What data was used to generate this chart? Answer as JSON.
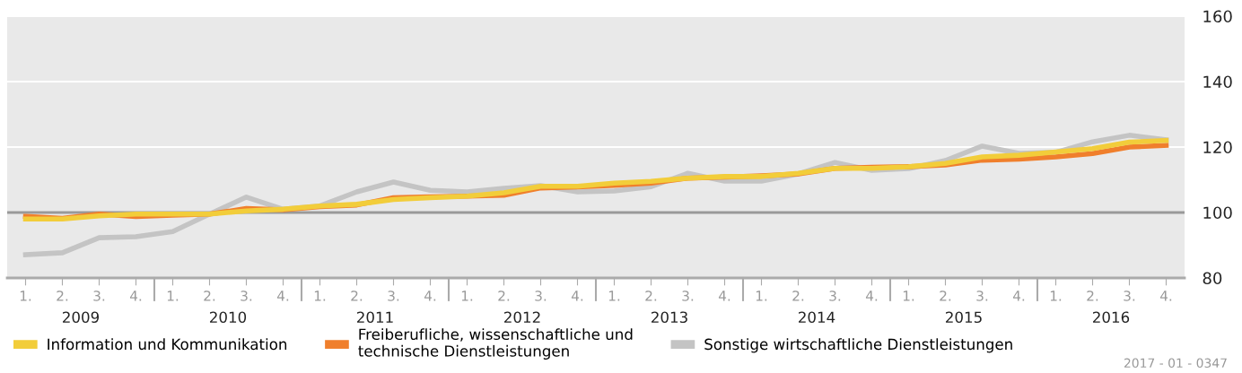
{
  "chart_data": {
    "type": "line",
    "categories": [
      "1.",
      "2.",
      "3.",
      "4.",
      "1.",
      "2.",
      "3.",
      "4.",
      "1.",
      "2.",
      "3.",
      "4.",
      "1.",
      "2.",
      "3.",
      "4.",
      "1.",
      "2.",
      "3.",
      "4.",
      "1.",
      "2.",
      "3.",
      "4.",
      "1.",
      "2.",
      "3.",
      "4.",
      "1.",
      "2.",
      "3.",
      "4."
    ],
    "series": [
      {
        "name": "Sonstige wirtschaftliche Dienstleistungen",
        "color": "#c4c4c4",
        "values": [
          87.1,
          87.7,
          92.3,
          92.6,
          94.2,
          99.5,
          104.7,
          101,
          102,
          106.3,
          109.3,
          106.8,
          106.3,
          107.4,
          108.2,
          106.3,
          106.6,
          107.9,
          112,
          109.6,
          109.6,
          111.8,
          115.3,
          112.9,
          113.4,
          115.9,
          120.3,
          118.1,
          118.4,
          121.6,
          123.6,
          122.2
        ]
      },
      {
        "name": "Freiberufliche, wissenschaftliche und\ntechnische Dienstleistungen",
        "color": "#f07f2c",
        "values": [
          98.8,
          98.2,
          99.5,
          98.8,
          99.2,
          99.5,
          101.2,
          100.8,
          101.8,
          102.3,
          104.5,
          104.8,
          105,
          105.3,
          107.5,
          107.8,
          108.3,
          109,
          110.5,
          110.8,
          111.2,
          111.8,
          113.5,
          113.8,
          114,
          114.5,
          116,
          116.3,
          117,
          118,
          120,
          120.5
        ]
      },
      {
        "name": "Information und Kommunikation",
        "color": "#f2cd3a",
        "values": [
          98,
          98,
          99,
          99.5,
          99.5,
          99.5,
          100.5,
          101,
          102,
          102.5,
          104,
          104.5,
          105,
          106,
          108,
          108,
          109,
          109.5,
          110.5,
          111,
          111,
          112,
          113.5,
          113.5,
          114,
          115,
          117,
          117.5,
          118.5,
          119.5,
          121.5,
          122
        ]
      }
    ],
    "ylim": [
      80,
      160
    ],
    "yticks": [
      80,
      100,
      120,
      140,
      160
    ],
    "grid": "y",
    "legend": "bottom",
    "marker": "none",
    "line_style": "solid",
    "ref_lines": [
      {
        "axis": "y",
        "value": 100,
        "color": "#999999"
      }
    ],
    "annotations": [
      "2009",
      "2010",
      "2011",
      "2012",
      "2013",
      "2014",
      "2015",
      "2016",
      "2017 - 01 - 0347"
    ]
  }
}
